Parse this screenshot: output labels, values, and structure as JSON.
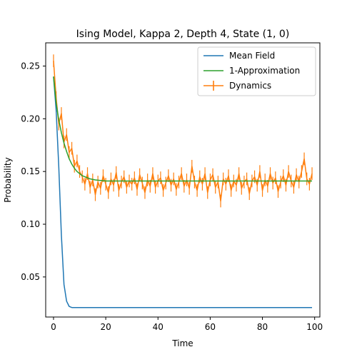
{
  "chart_data": {
    "type": "line",
    "title": "Ising Model, Kappa 2, Depth 4, State (1, 0)",
    "xlabel": "Time",
    "ylabel": "Probability",
    "xlim": [
      -3,
      102
    ],
    "ylim": [
      0.012,
      0.272
    ],
    "xticks": [
      0,
      20,
      40,
      60,
      80,
      100
    ],
    "yticks": [
      0.05,
      0.1,
      0.15,
      0.2,
      0.25
    ],
    "grid": false,
    "legend_position": "top-right",
    "series": [
      {
        "name": "Mean Field",
        "color": "#1f77b4",
        "x": [
          0,
          1,
          2,
          3,
          4,
          5,
          6,
          7,
          8,
          9,
          10,
          15,
          20,
          30,
          40,
          50,
          60,
          70,
          80,
          90,
          99
        ],
        "values": [
          0.24,
          0.208,
          0.155,
          0.09,
          0.043,
          0.027,
          0.022,
          0.021,
          0.021,
          0.021,
          0.021,
          0.021,
          0.021,
          0.021,
          0.021,
          0.021,
          0.021,
          0.021,
          0.021,
          0.021,
          0.021
        ]
      },
      {
        "name": "1-Approximation",
        "color": "#2ca02c",
        "x": [
          0,
          1,
          2,
          3,
          4,
          5,
          6,
          7,
          8,
          9,
          10,
          11,
          12,
          13,
          14,
          16,
          18,
          20,
          22,
          25,
          30,
          40,
          50,
          60,
          70,
          80,
          90,
          99
        ],
        "values": [
          0.24,
          0.215,
          0.199,
          0.187,
          0.177,
          0.169,
          0.162,
          0.157,
          0.153,
          0.15,
          0.148,
          0.146,
          0.145,
          0.144,
          0.143,
          0.142,
          0.1415,
          0.141,
          0.141,
          0.141,
          0.141,
          0.141,
          0.141,
          0.141,
          0.141,
          0.141,
          0.141,
          0.141
        ]
      },
      {
        "name": "Dynamics",
        "color": "#ff7f0e",
        "error_bars": true,
        "x": [
          0,
          1,
          2,
          3,
          4,
          5,
          6,
          7,
          8,
          9,
          10,
          11,
          12,
          13,
          14,
          15,
          16,
          17,
          18,
          19,
          20,
          21,
          22,
          23,
          24,
          25,
          26,
          27,
          28,
          29,
          30,
          31,
          32,
          33,
          34,
          35,
          36,
          37,
          38,
          39,
          40,
          41,
          42,
          43,
          44,
          45,
          46,
          47,
          48,
          49,
          50,
          51,
          52,
          53,
          54,
          55,
          56,
          57,
          58,
          59,
          60,
          61,
          62,
          63,
          64,
          65,
          66,
          67,
          68,
          69,
          70,
          71,
          72,
          73,
          74,
          75,
          76,
          77,
          78,
          79,
          80,
          81,
          82,
          83,
          84,
          85,
          86,
          87,
          88,
          89,
          90,
          91,
          92,
          93,
          94,
          95,
          96,
          97,
          98,
          99
        ],
        "values": [
          0.255,
          0.22,
          0.195,
          0.205,
          0.178,
          0.185,
          0.168,
          0.172,
          0.155,
          0.16,
          0.15,
          0.145,
          0.138,
          0.148,
          0.135,
          0.142,
          0.128,
          0.14,
          0.134,
          0.146,
          0.138,
          0.13,
          0.143,
          0.137,
          0.149,
          0.132,
          0.14,
          0.145,
          0.135,
          0.141,
          0.138,
          0.144,
          0.133,
          0.147,
          0.139,
          0.13,
          0.142,
          0.136,
          0.148,
          0.135,
          0.141,
          0.144,
          0.132,
          0.139,
          0.146,
          0.137,
          0.143,
          0.133,
          0.14,
          0.148,
          0.136,
          0.142,
          0.134,
          0.155,
          0.14,
          0.132,
          0.145,
          0.138,
          0.148,
          0.13,
          0.142,
          0.147,
          0.135,
          0.14,
          0.122,
          0.143,
          0.138,
          0.146,
          0.132,
          0.141,
          0.137,
          0.148,
          0.134,
          0.14,
          0.143,
          0.129,
          0.141,
          0.145,
          0.137,
          0.15,
          0.132,
          0.142,
          0.136,
          0.148,
          0.139,
          0.144,
          0.131,
          0.14,
          0.146,
          0.137,
          0.15,
          0.141,
          0.135,
          0.147,
          0.14,
          0.15,
          0.162,
          0.143,
          0.138,
          0.148
        ],
        "errors": [
          0.006,
          0.006,
          0.006,
          0.006,
          0.006,
          0.006,
          0.006,
          0.006,
          0.006,
          0.006,
          0.006,
          0.006,
          0.006,
          0.006,
          0.006,
          0.006,
          0.006,
          0.006,
          0.006,
          0.006,
          0.006,
          0.006,
          0.006,
          0.006,
          0.006,
          0.006,
          0.006,
          0.006,
          0.006,
          0.006,
          0.006,
          0.006,
          0.006,
          0.006,
          0.006,
          0.006,
          0.006,
          0.006,
          0.006,
          0.006,
          0.006,
          0.006,
          0.006,
          0.006,
          0.006,
          0.006,
          0.006,
          0.006,
          0.006,
          0.006,
          0.006,
          0.006,
          0.006,
          0.006,
          0.006,
          0.006,
          0.006,
          0.006,
          0.006,
          0.006,
          0.006,
          0.006,
          0.006,
          0.006,
          0.006,
          0.006,
          0.006,
          0.006,
          0.006,
          0.006,
          0.006,
          0.006,
          0.006,
          0.006,
          0.006,
          0.006,
          0.006,
          0.006,
          0.006,
          0.006,
          0.006,
          0.006,
          0.006,
          0.006,
          0.006,
          0.006,
          0.006,
          0.006,
          0.006,
          0.006,
          0.006,
          0.006,
          0.006,
          0.006,
          0.006,
          0.006,
          0.006,
          0.006,
          0.006,
          0.006
        ]
      }
    ]
  }
}
